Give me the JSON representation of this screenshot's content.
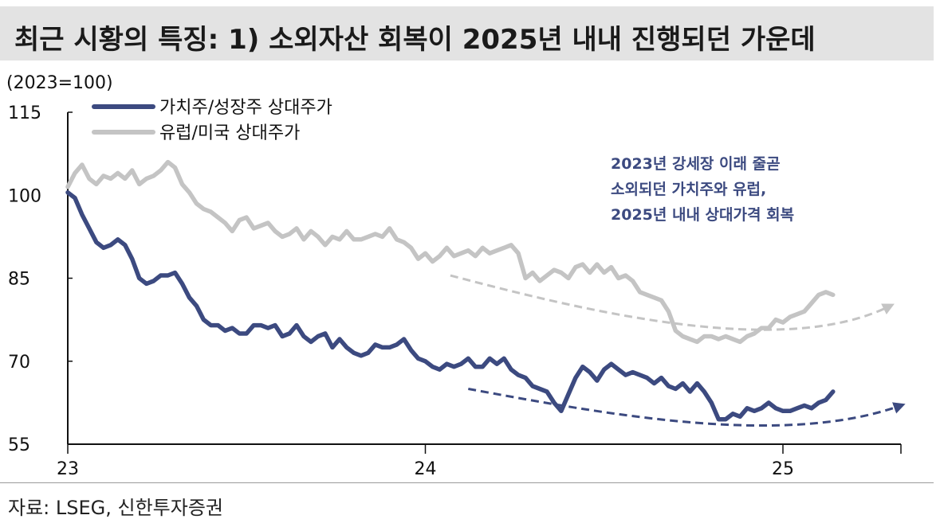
{
  "title": "최근 시황의 특징: 1) 소외자산 회복이 2025년 내내 진행되던 가운데",
  "source": "자료: LSEG, 신한투자증권",
  "colors": {
    "value_growth": "#3c4a80",
    "europe_us": "#c4c4c4",
    "annotation": "#3c4a80"
  },
  "chart_data": {
    "type": "line",
    "title": "",
    "ylabel": "(2023=100)",
    "xlabel": "",
    "ylim": [
      55,
      115
    ],
    "yticks": [
      115,
      100,
      85,
      70,
      55
    ],
    "xlim": [
      0,
      2.33
    ],
    "xticks": [
      {
        "value": 0,
        "label": "23"
      },
      {
        "value": 1,
        "label": "24"
      },
      {
        "value": 2,
        "label": "25"
      }
    ],
    "legend_position": "top-left",
    "grid": false,
    "series": [
      {
        "name": "가치주/성장주 상대주가",
        "x": [
          0,
          0.02,
          0.04,
          0.06,
          0.08,
          0.1,
          0.12,
          0.14,
          0.16,
          0.18,
          0.2,
          0.22,
          0.24,
          0.26,
          0.28,
          0.3,
          0.32,
          0.34,
          0.36,
          0.38,
          0.4,
          0.42,
          0.44,
          0.46,
          0.48,
          0.5,
          0.52,
          0.54,
          0.56,
          0.58,
          0.6,
          0.62,
          0.64,
          0.66,
          0.68,
          0.7,
          0.72,
          0.74,
          0.76,
          0.78,
          0.8,
          0.82,
          0.84,
          0.86,
          0.88,
          0.9,
          0.92,
          0.94,
          0.96,
          0.98,
          1.0,
          1.02,
          1.04,
          1.06,
          1.08,
          1.1,
          1.12,
          1.14,
          1.16,
          1.18,
          1.2,
          1.22,
          1.24,
          1.26,
          1.28,
          1.3,
          1.32,
          1.34,
          1.36,
          1.38,
          1.4,
          1.42,
          1.44,
          1.46,
          1.48,
          1.5,
          1.52,
          1.54,
          1.56,
          1.58,
          1.6,
          1.62,
          1.64,
          1.66,
          1.68,
          1.7,
          1.72,
          1.74,
          1.76,
          1.78,
          1.8,
          1.82,
          1.84,
          1.86,
          1.88,
          1.9,
          1.92,
          1.94,
          1.96,
          1.98,
          2.0,
          2.02,
          2.04,
          2.06,
          2.08,
          2.1,
          2.12,
          2.14
        ],
        "values": [
          100.5,
          99.5,
          96.5,
          94.0,
          91.5,
          90.5,
          91.0,
          92.0,
          91.0,
          88.5,
          85.0,
          84.0,
          84.5,
          85.5,
          85.5,
          86.0,
          84.0,
          81.5,
          80.0,
          77.5,
          76.5,
          76.5,
          75.5,
          76.0,
          75.0,
          75.0,
          76.5,
          76.5,
          76.0,
          76.5,
          74.5,
          75.0,
          76.5,
          74.5,
          73.5,
          74.5,
          75.0,
          72.5,
          74.0,
          72.5,
          71.5,
          71.0,
          71.5,
          73.0,
          72.5,
          72.5,
          73.0,
          74.0,
          72.0,
          70.5,
          70.0,
          69.0,
          68.5,
          69.5,
          69.0,
          69.5,
          70.5,
          69.0,
          69.0,
          70.5,
          69.5,
          70.5,
          68.5,
          67.5,
          67.0,
          65.5,
          65.0,
          64.5,
          62.5,
          61.0,
          64.0,
          67.0,
          69.0,
          68.0,
          66.5,
          68.5,
          69.5,
          68.5,
          67.5,
          68.0,
          67.5,
          67.0,
          66.0,
          67.0,
          65.5,
          65.0,
          66.0,
          64.5,
          66.0,
          64.5,
          62.5,
          59.5,
          59.5,
          60.5,
          60.0,
          61.5,
          61.0,
          61.5,
          62.5,
          61.5,
          61.0,
          61.0,
          61.5,
          62.0,
          61.5,
          62.5,
          63.0,
          64.5
        ]
      },
      {
        "name": "유럽/미국 상대주가",
        "x": [
          0,
          0.02,
          0.04,
          0.06,
          0.08,
          0.1,
          0.12,
          0.14,
          0.16,
          0.18,
          0.2,
          0.22,
          0.24,
          0.26,
          0.28,
          0.3,
          0.32,
          0.34,
          0.36,
          0.38,
          0.4,
          0.42,
          0.44,
          0.46,
          0.48,
          0.5,
          0.52,
          0.54,
          0.56,
          0.58,
          0.6,
          0.62,
          0.64,
          0.66,
          0.68,
          0.7,
          0.72,
          0.74,
          0.76,
          0.78,
          0.8,
          0.82,
          0.84,
          0.86,
          0.88,
          0.9,
          0.92,
          0.94,
          0.96,
          0.98,
          1.0,
          1.02,
          1.04,
          1.06,
          1.08,
          1.1,
          1.12,
          1.14,
          1.16,
          1.18,
          1.2,
          1.22,
          1.24,
          1.26,
          1.28,
          1.3,
          1.32,
          1.34,
          1.36,
          1.38,
          1.4,
          1.42,
          1.44,
          1.46,
          1.48,
          1.5,
          1.52,
          1.54,
          1.56,
          1.58,
          1.6,
          1.62,
          1.64,
          1.66,
          1.68,
          1.7,
          1.72,
          1.74,
          1.76,
          1.78,
          1.8,
          1.82,
          1.84,
          1.86,
          1.88,
          1.9,
          1.92,
          1.94,
          1.96,
          1.98,
          2.0,
          2.02,
          2.04,
          2.06,
          2.08,
          2.1,
          2.12,
          2.14
        ],
        "values": [
          101.5,
          104.0,
          105.5,
          103.0,
          102.0,
          103.5,
          103.0,
          104.0,
          103.0,
          104.5,
          102.0,
          103.0,
          103.5,
          104.5,
          106.0,
          105.0,
          102.0,
          100.5,
          98.5,
          97.5,
          97.0,
          96.0,
          95.0,
          93.5,
          95.5,
          96.0,
          94.0,
          94.5,
          95.0,
          93.5,
          92.5,
          93.0,
          94.0,
          92.0,
          93.5,
          92.5,
          91.0,
          92.5,
          92.0,
          93.5,
          92.0,
          92.0,
          92.5,
          93.0,
          92.5,
          94.0,
          92.0,
          91.5,
          90.5,
          88.5,
          89.5,
          88.0,
          89.0,
          90.5,
          89.0,
          89.5,
          90.0,
          89.0,
          90.5,
          89.5,
          90.0,
          90.5,
          91.0,
          89.5,
          85.0,
          86.0,
          84.5,
          85.5,
          86.5,
          86.0,
          85.0,
          87.0,
          87.5,
          86.0,
          87.5,
          86.0,
          87.0,
          85.0,
          85.5,
          84.5,
          82.5,
          82.0,
          81.5,
          81.0,
          79.0,
          75.5,
          74.5,
          74.0,
          73.5,
          74.5,
          74.5,
          74.0,
          74.5,
          74.0,
          73.5,
          74.5,
          75.0,
          76.0,
          76.0,
          77.5,
          77.0,
          78.0,
          78.5,
          79.0,
          80.5,
          82.0,
          82.5,
          82.0
        ]
      }
    ],
    "annotations": [
      {
        "lines": [
          "2023년 강세장 이래 줄곧",
          "소외되던 가치주와 유럽,",
          "2025년 내내 상대가격 회복"
        ]
      }
    ],
    "trend_arrows": [
      {
        "series": "유럽/미국 상대주가",
        "style": "dashed",
        "points": [
          [
            1.07,
            85.5
          ],
          [
            1.45,
            79.0
          ],
          [
            2.0,
            71.5
          ],
          [
            2.3,
            80.0
          ]
        ]
      },
      {
        "series": "가치주/성장주 상대주가",
        "style": "dashed",
        "points": [
          [
            1.12,
            65.0
          ],
          [
            1.5,
            60.5
          ],
          [
            2.0,
            55.5
          ],
          [
            2.33,
            62.0
          ]
        ]
      }
    ]
  }
}
